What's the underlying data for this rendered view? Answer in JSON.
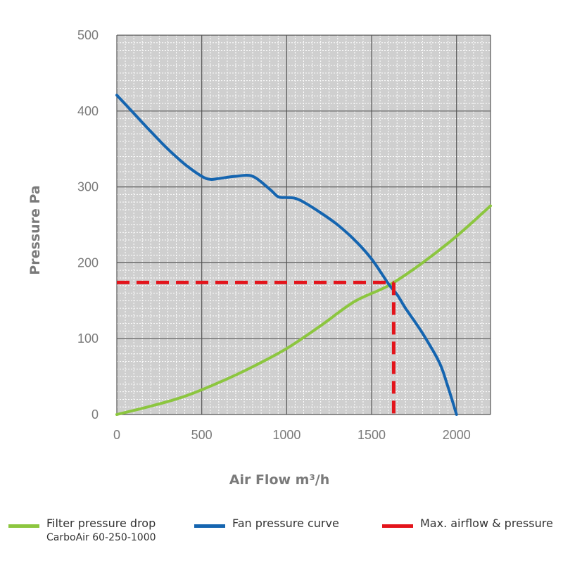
{
  "colors": {
    "plot_background": "#cfcfcf",
    "major_grid": "#555555",
    "minor_grid": "#ffffff",
    "filter_series": "#8cc63f",
    "fan_series": "#1565b0",
    "max_marker": "#e3141b",
    "text": "#7a7a7a"
  },
  "chart_data": {
    "type": "line",
    "xlabel": "Air Flow m³/h",
    "ylabel": "Pressure Pa",
    "xlim": [
      0,
      2200
    ],
    "ylim": [
      0,
      500
    ],
    "x_ticks": [
      0,
      500,
      1000,
      1500,
      2000
    ],
    "y_ticks": [
      0,
      100,
      200,
      300,
      400,
      500
    ],
    "grid": true,
    "minor_grid": true,
    "legend_position": "bottom",
    "series": [
      {
        "name": "Filter pressure drop",
        "subname": "CarboAir 60-250-1000",
        "color": "#8cc63f",
        "x": [
          0,
          200,
          400,
          600,
          800,
          1000,
          1200,
          1400,
          1600,
          1800,
          2000,
          2200
        ],
        "y": [
          0,
          11,
          24,
          42,
          63,
          87,
          117,
          149,
          170,
          200,
          235,
          275
        ]
      },
      {
        "name": "Fan pressure curve",
        "color": "#1565b0",
        "x": [
          0,
          100,
          200,
          300,
          400,
          500,
          550,
          600,
          700,
          800,
          900,
          950,
          1000,
          1050,
          1100,
          1200,
          1300,
          1400,
          1500,
          1600,
          1650,
          1700,
          1800,
          1900,
          1950,
          2000
        ],
        "y": [
          421,
          397,
          373,
          350,
          330,
          314,
          310,
          311,
          314,
          314,
          297,
          287,
          286,
          285,
          280,
          266,
          250,
          230,
          205,
          172,
          158,
          140,
          107,
          68,
          36,
          0
        ]
      }
    ],
    "markers": [
      {
        "name": "Max. airflow & pressure",
        "color": "#e3141b",
        "x": 1630,
        "y": 174
      }
    ]
  },
  "legend": {
    "filter_label": "Filter pressure drop",
    "filter_sublabel": "CarboAir 60-250-1000",
    "fan_label": "Fan pressure curve",
    "max_label": "Max. airflow & pressure"
  }
}
